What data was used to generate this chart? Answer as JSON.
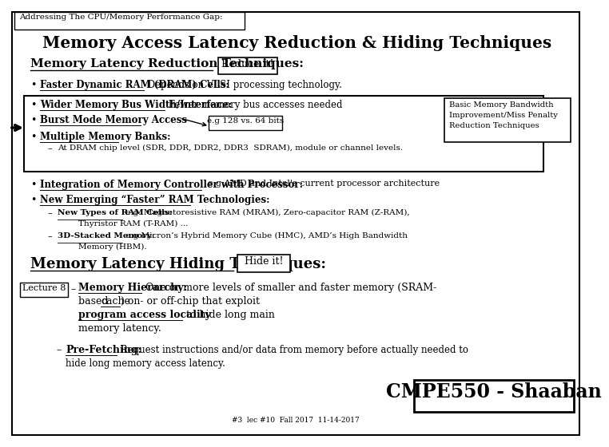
{
  "bg_color": "#ffffff",
  "outer_border_color": "#000000",
  "title_tab": "Addressing The CPU/Memory Performance Gap:",
  "main_title": "Memory Access Latency Reduction & Hiding Techniques",
  "section1_heading": "Memory Latency Reduction Techniques:",
  "reduce_box": "Reduce it!",
  "bullet1_label": "Faster Dynamic RAM (DRAM) Cells:",
  "bullet1_text": " Depends on VLSI processing technology.",
  "bullet2_label": "Wider Memory Bus Width/Interface:",
  "bullet2_text": " Fewer memory bus accesses needed",
  "bullet3_label": "Burst Mode Memory Access",
  "bullet3_eg": "e.g 128 vs. 64 bits",
  "bullet4_label": "Multiple Memory Banks:",
  "bullet4_sub": "At DRAM chip level (SDR, DDR, DDR2, DDR3  SDRAM), module or channel levels.",
  "side_box_line1": "Basic Memory Bandwidth",
  "side_box_line2": "Improvement/Miss Penalty",
  "side_box_line3": "Reduction Techniques",
  "bullet5_label": "Integration of Memory Controller with Processor:",
  "bullet5_text": "  e.g AMD and Intel's current processor architecture",
  "bullet6_label": "New Emerging “Faster” RAM Technologies:",
  "sub1_label": "New Types of RAM Cells:",
  "sub1_text": " e.g. Magnetoresistive RAM (MRAM), Zero-capacitor RAM (Z-RAM),",
  "sub1_text2": "        Thyristor RAM (T-RAM) ...",
  "sub2_label": "3D-Stacked Memory:",
  "sub2_text": " e.g Micron’s Hybrid Memory Cube (HMC), AMD’s High Bandwidth",
  "sub2_text2": "        Memory (HBM).",
  "section2_heading": "Memory Latency Hiding Techniques:",
  "hide_box": "Hide it!",
  "lecture_box": "Lecture 8",
  "hier_label": "Memory Hierarchy:",
  "hier_text1": " One or more levels of smaller and faster memory (SRAM-",
  "hier_text2": "based ",
  "hier_cache": "cache",
  "hier_text3": ") on- or off-chip that exploit ",
  "hier_text4": "program access locality",
  "hier_text5": " to hide long main",
  "hier_text6": "memory latency.",
  "prefetch_label": "Pre-Fetching:",
  "prefetch_text1": " Request instructions and/or data from memory before actually needed to",
  "prefetch_text2": "hide long memory access latency.",
  "footer_box": "CMPE550 - Shaaban",
  "footer_small": "#3  lec #10  Fall 2017  11-14-2017"
}
